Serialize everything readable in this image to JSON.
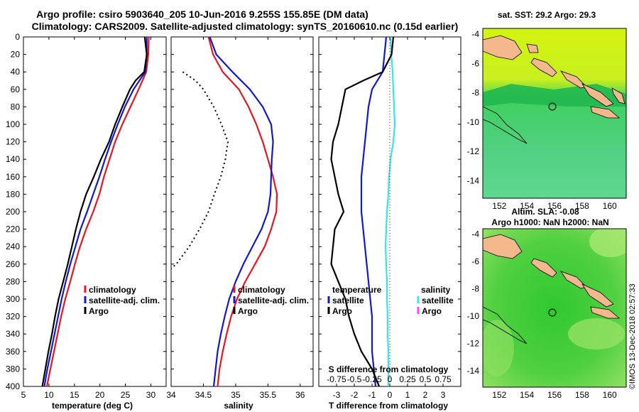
{
  "titles": {
    "line1": "Argo profile: csiro 5903640_205 10-Jun-2016 9.255S 155.85E (DM data)",
    "line2": "Climatology: CARS2009. Satellite-adjusted climatology: synTS_20160610.nc (0.15d earlier)"
  },
  "credit": "©IMOS 13-Dec-2018 02:57:33",
  "colors": {
    "climatology": "#e8141e",
    "satellite_adj": "#1018d0",
    "argo": "#000000",
    "sal_satellite": "#38e4ec",
    "argo_sal": "#ff40ff"
  },
  "chart_data": [
    {
      "type": "line",
      "panel": "temperature",
      "xlabel": "temperature (deg C)",
      "ylabel": "",
      "xlim": [
        5,
        33
      ],
      "ylim": [
        400,
        0
      ],
      "xticks": [
        5,
        10,
        15,
        20,
        25,
        30
      ],
      "yticks": [
        0,
        20,
        40,
        60,
        80,
        100,
        120,
        140,
        160,
        180,
        200,
        220,
        240,
        260,
        280,
        300,
        320,
        340,
        360,
        380,
        400
      ],
      "legend": [
        "climatology",
        "satellite-adj. clim.",
        "Argo"
      ],
      "series": [
        {
          "name": "climatology",
          "depth": [
            0,
            20,
            40,
            60,
            80,
            100,
            120,
            140,
            160,
            180,
            200,
            220,
            240,
            260,
            280,
            300,
            320,
            340,
            360,
            380,
            400
          ],
          "values": [
            29.6,
            29.5,
            29.1,
            27.6,
            26.0,
            24.4,
            23.0,
            21.9,
            20.8,
            19.9,
            18.7,
            17.3,
            16.1,
            15.1,
            14.2,
            13.2,
            12.4,
            11.7,
            11.0,
            10.3,
            9.6
          ]
        },
        {
          "name": "satellite-adj. clim.",
          "depth": [
            0,
            20,
            40,
            60,
            80,
            100,
            120,
            140,
            160,
            180,
            200,
            220,
            240,
            260,
            280,
            300,
            320,
            340,
            360,
            380,
            400
          ],
          "values": [
            29.2,
            29.2,
            28.9,
            26.6,
            24.9,
            23.5,
            22.2,
            21.0,
            19.9,
            18.7,
            17.5,
            16.2,
            15.2,
            14.2,
            13.3,
            12.5,
            11.8,
            11.1,
            10.4,
            9.7,
            9.1
          ]
        },
        {
          "name": "Argo",
          "depth": [
            0,
            20,
            40,
            50,
            60,
            80,
            100,
            120,
            140,
            160,
            180,
            200,
            220,
            240,
            260,
            280,
            300,
            320,
            340,
            360,
            380,
            400
          ],
          "values": [
            28.8,
            29.2,
            28.7,
            27.0,
            25.9,
            24.4,
            23.0,
            21.8,
            20.2,
            18.8,
            17.3,
            16.2,
            15.3,
            14.5,
            13.7,
            12.8,
            11.9,
            11.2,
            10.6,
            9.9,
            9.3,
            8.7
          ]
        }
      ]
    },
    {
      "type": "line",
      "panel": "salinity",
      "xlabel": "salinity",
      "xlim": [
        34,
        36.2
      ],
      "ylim": [
        400,
        0
      ],
      "xticks": [
        34,
        34.5,
        35,
        35.5,
        36
      ],
      "legend": [
        "climatology",
        "satellite-adj. clim.",
        "Argo"
      ],
      "series": [
        {
          "name": "climatology",
          "depth": [
            0,
            20,
            40,
            60,
            80,
            100,
            120,
            140,
            160,
            180,
            200,
            220,
            240,
            260,
            280,
            300,
            320,
            340,
            360,
            380,
            400
          ],
          "values": [
            34.58,
            34.65,
            34.8,
            35.05,
            35.2,
            35.32,
            35.42,
            35.5,
            35.58,
            35.64,
            35.63,
            35.55,
            35.45,
            35.3,
            35.15,
            35.02,
            34.93,
            34.86,
            34.8,
            34.75,
            34.72
          ]
        },
        {
          "name": "satellite-adj. clim.",
          "depth": [
            0,
            20,
            40,
            60,
            80,
            100,
            120,
            140,
            160,
            180,
            200,
            220,
            240,
            260,
            280,
            300,
            320,
            340,
            360,
            380,
            400
          ],
          "values": [
            34.6,
            34.7,
            34.95,
            35.22,
            35.42,
            35.55,
            35.58,
            35.56,
            35.55,
            35.54,
            35.5,
            35.4,
            35.26,
            35.12,
            35.0,
            34.9,
            34.83,
            34.77,
            34.72,
            34.69,
            34.66
          ]
        },
        {
          "name": "Argo",
          "depth": [
            40,
            50,
            60,
            80,
            100,
            120,
            140,
            160,
            180,
            200,
            220,
            240,
            260,
            265
          ],
          "values": [
            34.18,
            34.38,
            34.5,
            34.66,
            34.78,
            34.88,
            34.84,
            34.77,
            34.67,
            34.58,
            34.44,
            34.28,
            34.08,
            34.0
          ]
        }
      ]
    },
    {
      "type": "line",
      "panel": "differences",
      "xlabel": "T difference from climatology",
      "xlabel_top": "S difference from climatology",
      "xlim": [
        -4,
        4
      ],
      "ylim": [
        400,
        0
      ],
      "xticks": [
        -3,
        -2,
        -1,
        0,
        1,
        2,
        3
      ],
      "xticks_top": [
        "-0.75",
        "-0.5",
        "-0.25",
        "0",
        "0.25",
        "0.5",
        "0.75"
      ],
      "legend_left_title": "temperature",
      "legend_left": [
        "satellite",
        "Argo"
      ],
      "legend_right_title": "salinity",
      "legend_right": [
        "satellite",
        "Argo"
      ],
      "series": [
        {
          "name": "T satellite",
          "depth": [
            0,
            20,
            40,
            60,
            80,
            100,
            120,
            140,
            160,
            180,
            200,
            220,
            240,
            260,
            280,
            300,
            320,
            340,
            360,
            380,
            400
          ],
          "values": [
            -0.2,
            -0.3,
            -0.4,
            -1.0,
            -1.2,
            -1.3,
            -1.4,
            -1.5,
            -1.6,
            -1.6,
            -1.6,
            -1.5,
            -1.4,
            -1.3,
            -1.2,
            -1.1,
            -1.0,
            -1.0,
            -1.0,
            -0.9,
            -0.8
          ]
        },
        {
          "name": "S satellite",
          "depth": [
            0,
            20,
            40,
            60,
            80,
            100,
            120,
            140,
            160,
            180,
            200,
            220,
            240,
            260,
            280,
            300,
            320,
            340,
            360,
            380,
            400
          ],
          "values": [
            0.01,
            0.02,
            0.04,
            0.05,
            0.06,
            0.07,
            0.05,
            0.01,
            -0.01,
            -0.02,
            -0.04,
            -0.05,
            -0.06,
            -0.05,
            -0.04,
            -0.04,
            -0.03,
            -0.03,
            -0.02,
            -0.02,
            -0.02
          ]
        },
        {
          "name": "T Argo",
          "depth": [
            0,
            20,
            40,
            50,
            60,
            80,
            100,
            120,
            140,
            160,
            180,
            200,
            220,
            240,
            260,
            280,
            300,
            320,
            340,
            360,
            380,
            400
          ],
          "values": [
            0.2,
            0.1,
            -0.4,
            -1.5,
            -2.5,
            -2.7,
            -2.9,
            -3.2,
            -3.3,
            -3.1,
            -2.9,
            -2.6,
            -3.1,
            -3.2,
            -3.3,
            -2.9,
            -2.5,
            -2.3,
            -2.0,
            -1.6,
            -1.0,
            -0.6
          ]
        }
      ]
    },
    {
      "type": "heatmap",
      "panel": "sst-map",
      "title": "sat. SST: 29.2  Argo: 29.3",
      "xlim": [
        150.8,
        161.2
      ],
      "ylim": [
        -15.2,
        -3.6
      ],
      "xticks": [
        152,
        154,
        156,
        158,
        160
      ],
      "yticks": [
        -4,
        -6,
        -8,
        -10,
        -12,
        -14
      ],
      "marker": {
        "lon": 155.85,
        "lat": -9.255
      }
    },
    {
      "type": "heatmap",
      "panel": "sla-map",
      "title_line1": "Altim. SLA: -0.08",
      "title_line2": "Argo h1000: NaN h2000: NaN",
      "xlim": [
        150.8,
        161.2
      ],
      "ylim": [
        -15.2,
        -3.6
      ],
      "xticks": [
        152,
        154,
        156,
        158,
        160
      ],
      "yticks": [
        -4,
        -6,
        -8,
        -10,
        -12,
        -14
      ],
      "marker": {
        "lon": 155.85,
        "lat": -9.255
      }
    }
  ]
}
